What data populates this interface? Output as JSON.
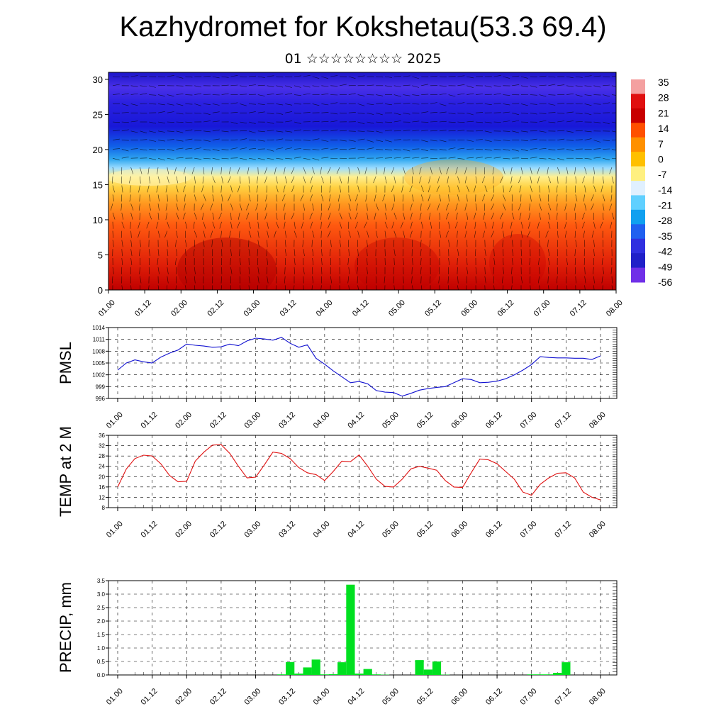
{
  "title": "Kazhydromet for Kokshetau(53.3 69.4)",
  "subtitle": "01 ☆☆☆☆☆☆☆☆ 2025",
  "chart_data": [
    {
      "type": "heatmap",
      "title": "",
      "y_ticks": [
        "0",
        "5",
        "10",
        "15",
        "20",
        "25",
        "30"
      ],
      "ylim": [
        0,
        31
      ],
      "x_ticks": [
        "01.00",
        "01.12",
        "02.00",
        "02.12",
        "03.00",
        "03.12",
        "04.00",
        "04.12",
        "05.00",
        "05.12",
        "06.00",
        "06.12",
        "07.00",
        "07.12",
        "08.00"
      ],
      "colorbar": {
        "labels": [
          "35",
          "28",
          "21",
          "14",
          "7",
          "0",
          "-7",
          "-14",
          "-21",
          "-28",
          "-35",
          "-42",
          "-49",
          "-56"
        ],
        "colors": [
          "#f4a0a0",
          "#e01010",
          "#c80000",
          "#ff5000",
          "#ff9000",
          "#ffc000",
          "#fff080",
          "#e0f0ff",
          "#60d0ff",
          "#10a0f0",
          "#2060f0",
          "#3030e0",
          "#2020c8",
          "#7030e8"
        ]
      },
      "note_wind_barbs": true
    },
    {
      "type": "line",
      "ylabel": "PMSL",
      "ylim": [
        996,
        1014
      ],
      "y_ticks": [
        "1014",
        "1011",
        "1008",
        "1005",
        "1002",
        "999",
        "996"
      ],
      "x_ticks": [
        "01.00",
        "01.12",
        "02.00",
        "02.12",
        "03.00",
        "03.12",
        "04.00",
        "04.12",
        "05.00",
        "05.12",
        "06.00",
        "06.12",
        "07.00",
        "07.12",
        "08.00"
      ],
      "series": [
        {
          "color": "#1010d0",
          "x_hours": [
            0,
            3,
            6,
            9,
            12,
            15,
            18,
            21,
            24,
            27,
            30,
            33,
            36,
            39,
            42,
            45,
            48,
            51,
            54,
            57,
            60,
            63,
            66,
            69,
            72,
            75,
            78,
            81,
            84,
            87,
            90,
            93,
            96,
            99,
            102,
            105,
            108,
            111,
            114,
            117,
            120,
            123,
            126,
            129,
            132,
            135,
            138,
            141,
            144,
            147,
            150,
            153,
            156,
            159,
            162,
            165,
            168
          ],
          "values": [
            1003.2,
            1005,
            1005.8,
            1005.3,
            1005,
            1006.5,
            1007.5,
            1008.3,
            1009.8,
            1009.5,
            1009.3,
            1009,
            1009.1,
            1009.8,
            1009.4,
            1010.6,
            1011.3,
            1011.1,
            1010.8,
            1011.5,
            1010,
            1009,
            1009.6,
            1006.2,
            1004.7,
            1003,
            1001.5,
            1000,
            1000.3,
            999.7,
            998,
            997.6,
            997.5,
            996.6,
            997.3,
            998.1,
            998.5,
            998.8,
            999,
            1000,
            1001,
            1000.8,
            1000,
            1000.1,
            1000.4,
            1001,
            1002,
            1003.2,
            1004.6,
            1006.6,
            1006.4,
            1006.3,
            1006.3,
            1006.2,
            1006.2,
            1005.9,
            1006.8
          ]
        }
      ]
    },
    {
      "type": "line",
      "ylabel": "TEMP at 2 M",
      "ylim": [
        8,
        36
      ],
      "y_ticks": [
        "36",
        "32",
        "28",
        "24",
        "20",
        "16",
        "12",
        "8"
      ],
      "x_ticks": [
        "01.00",
        "01.12",
        "02.00",
        "02.12",
        "03.00",
        "03.12",
        "04.00",
        "04.12",
        "05.00",
        "05.12",
        "06.00",
        "06.12",
        "07.00",
        "07.12",
        "08.00"
      ],
      "series": [
        {
          "color": "#e01010",
          "x_hours": [
            0,
            3,
            6,
            9,
            12,
            15,
            18,
            21,
            24,
            27,
            30,
            33,
            36,
            39,
            42,
            45,
            48,
            51,
            54,
            57,
            60,
            63,
            66,
            69,
            72,
            75,
            78,
            81,
            84,
            87,
            90,
            93,
            96,
            99,
            102,
            105,
            108,
            111,
            114,
            117,
            120,
            123,
            126,
            129,
            132,
            135,
            138,
            141,
            144,
            147,
            150,
            153,
            156,
            159,
            162,
            165,
            168
          ],
          "values": [
            16,
            23,
            27,
            28.3,
            28,
            25,
            20.5,
            18,
            18.2,
            26,
            29.5,
            32.2,
            32.4,
            29,
            24,
            19.5,
            19.8,
            24.5,
            29.5,
            29,
            27,
            23.5,
            21.5,
            20.8,
            18.5,
            22,
            26,
            25.8,
            28.4,
            24,
            19,
            16.2,
            16,
            19,
            23,
            24,
            23.3,
            22.5,
            18.5,
            16,
            15.8,
            21.5,
            26.8,
            26.5,
            25,
            22,
            19,
            14,
            12.8,
            17,
            19.5,
            21.3,
            21.5,
            19.5,
            14,
            12,
            11
          ]
        }
      ]
    },
    {
      "type": "bar",
      "ylabel": "PRECIP, mm",
      "ylim": [
        0,
        3.5
      ],
      "y_ticks": [
        "3.5",
        "3.0",
        "2.5",
        "2.0",
        "1.5",
        "1.0",
        "0.5",
        "0.0"
      ],
      "x_ticks": [
        "01.00",
        "01.12",
        "02.00",
        "02.12",
        "03.00",
        "03.12",
        "04.00",
        "04.12",
        "05.00",
        "05.12",
        "06.00",
        "06.12",
        "07.00",
        "07.12",
        "08.00"
      ],
      "bar_color": "#00e020",
      "x_hours": [
        57,
        60,
        63,
        66,
        69,
        72,
        75,
        78,
        81,
        84,
        87,
        90,
        93,
        105,
        108,
        111,
        114,
        144,
        147,
        150,
        153,
        156
      ],
      "values": [
        0.02,
        0.48,
        0.05,
        0.28,
        0.57,
        0.02,
        0.03,
        0.47,
        3.35,
        0.05,
        0.22,
        0.02,
        0.01,
        0.55,
        0.2,
        0.5,
        0.01,
        0.02,
        0.02,
        0.02,
        0.08,
        0.47
      ]
    }
  ]
}
